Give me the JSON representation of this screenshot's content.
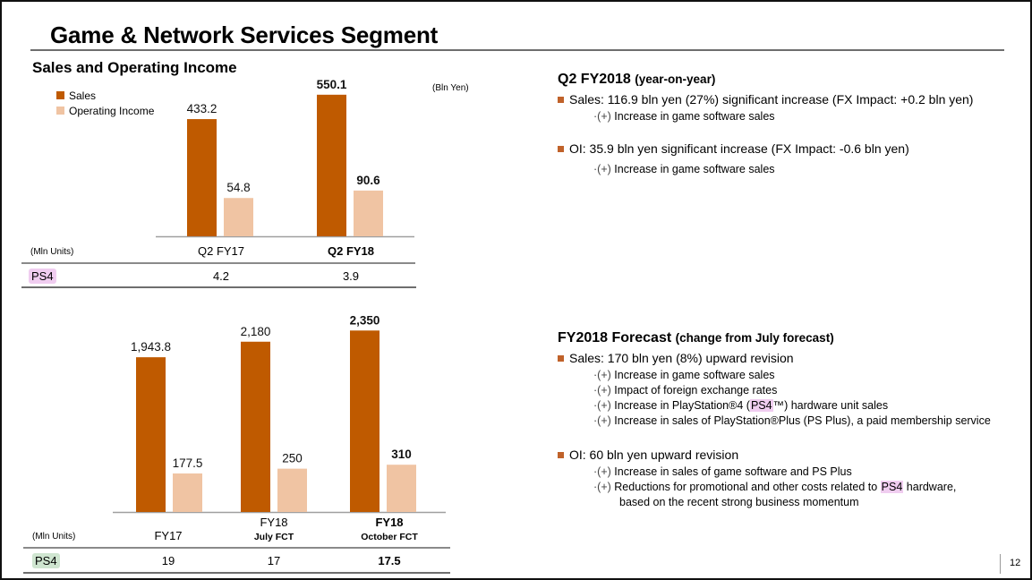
{
  "page": {
    "title": "Game & Network Services Segment",
    "page_number": "12"
  },
  "colors": {
    "sales": "#bf5a00",
    "operating_income": "#f0c4a3",
    "bullet": "#c0622a",
    "ps4_highlight_top": "#f0cdf0",
    "ps4_highlight_bottom": "#cfe5d0"
  },
  "left": {
    "subtitle": "Sales and Operating Income",
    "legend": [
      "Sales",
      "Operating Income"
    ],
    "unit_bln": "(Bln Yen)",
    "unit_mln": "(Mln Units)"
  },
  "chart_data": [
    {
      "type": "bar",
      "title": "Sales and Operating Income (Quarterly)",
      "ylabel": "Bln Yen",
      "categories": [
        "Q2 FY17",
        "Q2 FY18"
      ],
      "categories_bold": [
        false,
        true
      ],
      "series": [
        {
          "name": "Sales",
          "values": [
            433.2,
            550.1
          ],
          "labels": [
            "433.2",
            "550.1"
          ]
        },
        {
          "name": "Operating Income",
          "values": [
            54.8,
            90.6
          ],
          "labels": [
            "54.8",
            "90.6"
          ]
        }
      ],
      "legend": "top-left",
      "grid": false,
      "table": {
        "row_label": "PS4",
        "unit": "(Mln Units)",
        "values": [
          "4.2",
          "3.9"
        ]
      }
    },
    {
      "type": "bar",
      "title": "Sales and Operating Income (Fiscal Year)",
      "ylabel": "Bln Yen",
      "categories": [
        "FY17",
        "FY18",
        "FY18"
      ],
      "category_sublabels": [
        "",
        "July FCT",
        "October FCT"
      ],
      "categories_bold": [
        false,
        false,
        true
      ],
      "series": [
        {
          "name": "Sales",
          "values": [
            1943.8,
            2180,
            2350
          ],
          "labels": [
            "1,943.8",
            "2,180",
            "2,350"
          ]
        },
        {
          "name": "Operating Income",
          "values": [
            177.5,
            250,
            310
          ],
          "labels": [
            "177.5",
            "250",
            "310"
          ]
        }
      ],
      "grid": false,
      "table": {
        "row_label": "PS4",
        "unit": "(Mln Units)",
        "values": [
          "19",
          "17",
          "17.5"
        ]
      }
    }
  ],
  "right": {
    "q2": {
      "heading": "Q2 FY2018",
      "heading_small": "(year-on-year)",
      "bullets": [
        {
          "text": "Sales: 116.9 bln yen (27%) significant increase (FX Impact: +0.2 bln yen)",
          "subs": [
            {
              "mark": "·(+)",
              "text": "Increase in game software sales"
            }
          ]
        },
        {
          "text": "OI: 35.9 bln yen significant increase (FX Impact: -0.6 bln yen)",
          "subs": [
            {
              "mark": "·(+)",
              "text": "Increase in game software sales"
            }
          ]
        }
      ]
    },
    "forecast": {
      "heading": "FY2018 Forecast",
      "heading_small": "(change from July forecast)",
      "sales_bullet": "Sales: 170 bln yen (8%) upward revision",
      "sales_subs": [
        {
          "mark": "·(+)",
          "text": "Increase in game software sales"
        },
        {
          "mark": "·(+)",
          "text": "Impact of foreign exchange rates"
        },
        {
          "mark": "·(+)",
          "pre": "Increase in PlayStation®4 (",
          "hl": "PS4",
          "post": "™) hardware unit sales"
        },
        {
          "mark": "·(+)",
          "text": "Increase in sales of PlayStation®Plus (PS Plus), a paid membership service"
        }
      ],
      "oi_bullet": "OI: 60 bln yen upward revision",
      "oi_subs": [
        {
          "mark": "·(+)",
          "text": "Increase in sales of game software and PS Plus"
        },
        {
          "mark": "·(+)",
          "pre": "Reductions for promotional and other costs related to ",
          "hl": "PS4",
          "post": " hardware,",
          "cont": "based on the recent strong business momentum"
        }
      ]
    }
  }
}
